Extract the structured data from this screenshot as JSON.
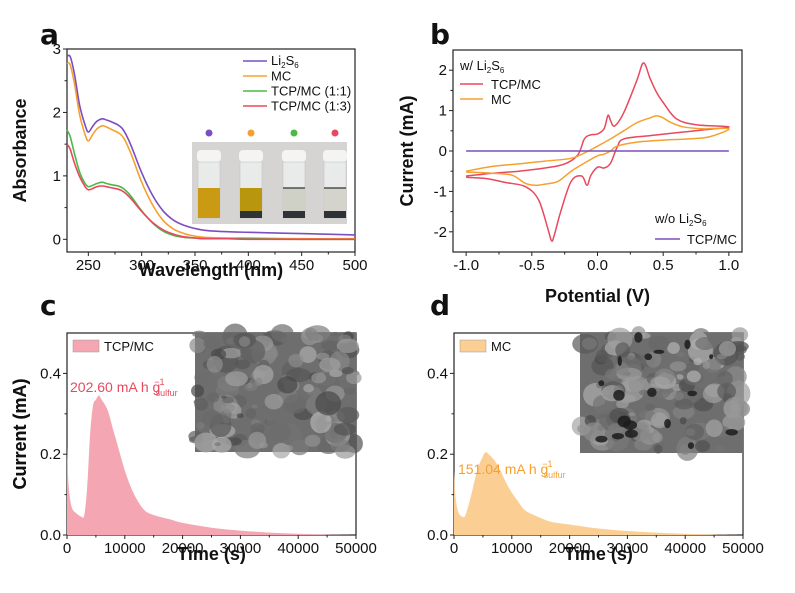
{
  "colors": {
    "purple": "#7b4fbf",
    "orange": "#f5a030",
    "green": "#4cb848",
    "red": "#e8495e",
    "fill_red": "#f4a7b2",
    "fill_orange": "#fbcf94"
  },
  "chart_data": [
    {
      "panel": "a",
      "type": "line",
      "xlabel": "Wavelength (nm)",
      "ylabel": "Absorbance",
      "xlim": [
        230,
        500
      ],
      "ylim": [
        -0.2,
        3
      ],
      "xticks": [
        "250",
        "300",
        "350",
        "400",
        "450",
        "500"
      ],
      "yticks": [
        "0",
        "1",
        "2",
        "3"
      ],
      "legend_position": "top-right",
      "inset": "photo of four vials (Li2S6, MC, TCP/MC 1:1, TCP/MC 1:3) with colored dots",
      "series": [
        {
          "name": "Li2S6",
          "legend_main": "Li",
          "legend_sub1": "2",
          "legend_mid": "S",
          "legend_sub2": "6",
          "color": "purple",
          "x": [
            230,
            233,
            237,
            242,
            247,
            250,
            254,
            258,
            263,
            267,
            272,
            278,
            283,
            290,
            300,
            310,
            320,
            330,
            340,
            350,
            360,
            380,
            400,
            450,
            500
          ],
          "y": [
            2.88,
            2.88,
            2.6,
            2.1,
            1.8,
            1.69,
            1.78,
            1.86,
            1.9,
            1.88,
            1.85,
            1.8,
            1.72,
            1.48,
            1.05,
            0.7,
            0.45,
            0.3,
            0.22,
            0.17,
            0.14,
            0.12,
            0.11,
            0.09,
            0.07
          ]
        },
        {
          "name": "MC",
          "color": "orange",
          "x": [
            230,
            233,
            237,
            242,
            247,
            250,
            254,
            258,
            263,
            267,
            272,
            278,
            283,
            290,
            300,
            310,
            320,
            330,
            340,
            350,
            360,
            380,
            400,
            450,
            500
          ],
          "y": [
            2.78,
            2.75,
            2.45,
            1.95,
            1.65,
            1.55,
            1.65,
            1.74,
            1.79,
            1.77,
            1.73,
            1.68,
            1.6,
            1.35,
            0.9,
            0.55,
            0.3,
            0.16,
            0.09,
            0.05,
            0.03,
            0.02,
            0.02,
            0.01,
            0.01
          ]
        },
        {
          "name": "TCP/MC (1:1)",
          "color": "green",
          "x": [
            230,
            233,
            237,
            242,
            247,
            250,
            254,
            258,
            263,
            267,
            272,
            278,
            283,
            290,
            300,
            310,
            320,
            330,
            340,
            350,
            360,
            380,
            400,
            450,
            500
          ],
          "y": [
            1.72,
            1.62,
            1.35,
            1.05,
            0.88,
            0.83,
            0.85,
            0.88,
            0.9,
            0.88,
            0.86,
            0.84,
            0.8,
            0.68,
            0.45,
            0.26,
            0.13,
            0.06,
            0.03,
            0.02,
            0.01,
            0.01,
            0.01,
            0.0,
            0.0
          ]
        },
        {
          "name": "TCP/MC (1:3)",
          "color": "red",
          "x": [
            230,
            233,
            237,
            242,
            247,
            250,
            254,
            258,
            263,
            267,
            272,
            278,
            283,
            290,
            300,
            310,
            320,
            330,
            340,
            350,
            360,
            380,
            400,
            450,
            500
          ],
          "y": [
            1.5,
            1.42,
            1.2,
            0.98,
            0.83,
            0.78,
            0.8,
            0.83,
            0.84,
            0.83,
            0.81,
            0.79,
            0.75,
            0.64,
            0.44,
            0.27,
            0.15,
            0.08,
            0.04,
            0.02,
            0.01,
            0.01,
            0.0,
            0.0,
            0.0
          ]
        }
      ]
    },
    {
      "panel": "b",
      "type": "line",
      "xlabel": "Potential (V)",
      "ylabel": "Current (mA)",
      "xlim": [
        -1.1,
        1.1
      ],
      "ylim": [
        -2.5,
        2.5
      ],
      "xticks": [
        "-1.0",
        "-0.5",
        "0.0",
        "0.5",
        "1.0"
      ],
      "yticks": [
        "-2",
        "-1",
        "0",
        "1",
        "2"
      ],
      "legend_groups": [
        {
          "title_main": "w/ Li",
          "title_sub1": "2",
          "title_mid": "S",
          "title_sub2": "6",
          "entries": [
            "TCP/MC",
            "MC"
          ],
          "position": "top-left"
        },
        {
          "title_main": "w/o Li",
          "title_sub1": "2",
          "title_mid": "S",
          "title_sub2": "6",
          "entries": [
            "TCP/MC"
          ],
          "position": "bottom-right"
        }
      ],
      "series": [
        {
          "name": "TCP/MC (w/ Li2S6)",
          "color": "red",
          "x": [
            -1.0,
            -0.8,
            -0.6,
            -0.4,
            -0.25,
            -0.15,
            -0.1,
            -0.05,
            0.0,
            0.05,
            0.08,
            0.1,
            0.13,
            0.2,
            0.3,
            0.35,
            0.4,
            0.45,
            0.5,
            0.6,
            0.75,
            1.0,
            0.8,
            0.6,
            0.4,
            0.2,
            0.15,
            0.1,
            0.05,
            0.0,
            -0.05,
            -0.08,
            -0.12,
            -0.2,
            -0.28,
            -0.33,
            -0.35,
            -0.38,
            -0.45,
            -0.55,
            -0.7,
            -0.85,
            -1.0
          ],
          "y": [
            -0.62,
            -0.55,
            -0.5,
            -0.42,
            -0.32,
            -0.1,
            0.3,
            0.4,
            0.42,
            0.55,
            0.88,
            0.75,
            0.62,
            0.95,
            1.75,
            2.18,
            1.8,
            1.45,
            1.2,
            0.8,
            0.65,
            0.6,
            0.52,
            0.45,
            0.38,
            0.3,
            0.1,
            -0.3,
            -0.42,
            -0.4,
            -0.6,
            -0.85,
            -0.62,
            -0.75,
            -1.5,
            -2.1,
            -2.22,
            -1.9,
            -1.2,
            -0.88,
            -0.78,
            -0.68,
            -0.65
          ]
        },
        {
          "name": "MC (w/ Li2S6)",
          "color": "orange",
          "x": [
            -1.0,
            -0.8,
            -0.6,
            -0.4,
            -0.2,
            -0.1,
            0.0,
            0.1,
            0.2,
            0.3,
            0.4,
            0.45,
            0.5,
            0.55,
            0.65,
            0.8,
            1.0,
            0.85,
            0.7,
            0.5,
            0.3,
            0.15,
            0.1,
            0.05,
            0.0,
            -0.1,
            -0.2,
            -0.3,
            -0.4,
            -0.47,
            -0.55,
            -0.65,
            -0.8,
            -1.0
          ],
          "y": [
            -0.5,
            -0.38,
            -0.32,
            -0.25,
            -0.18,
            -0.05,
            0.12,
            0.3,
            0.5,
            0.7,
            0.82,
            0.87,
            0.82,
            0.72,
            0.6,
            0.55,
            0.55,
            0.35,
            0.3,
            0.27,
            0.22,
            0.12,
            0.0,
            -0.08,
            -0.12,
            -0.3,
            -0.5,
            -0.75,
            -0.82,
            -0.85,
            -0.8,
            -0.6,
            -0.55,
            -0.52
          ]
        },
        {
          "name": "TCP/MC (w/o Li2S6)",
          "color": "purple",
          "x": [
            -1.0,
            1.0
          ],
          "y": [
            0.0,
            0.0
          ]
        }
      ]
    },
    {
      "panel": "c",
      "type": "area",
      "xlabel": "Time (s)",
      "ylabel": "Current (mA)",
      "xlim": [
        0,
        50000
      ],
      "ylim": [
        0,
        0.5
      ],
      "xticks": [
        "0",
        "10000",
        "20000",
        "30000",
        "40000",
        "50000"
      ],
      "yticks": [
        "0.0",
        "0.2",
        "0.4"
      ],
      "legend": "TCP/MC",
      "legend_position": "top-left",
      "annotation": {
        "value": "202.60 mA h g",
        "sup": "−1",
        "sub": "sulfur"
      },
      "inset": "SEM image",
      "series": [
        {
          "name": "TCP/MC",
          "color": "fill_red",
          "x": [
            0,
            300,
            800,
            1500,
            2500,
            3000,
            3500,
            4000,
            4500,
            5000,
            5500,
            6000,
            7000,
            8000,
            9000,
            10000,
            11000,
            12000,
            13000,
            14000,
            16000,
            18000,
            20000,
            25000,
            30000,
            35000,
            40000,
            45000,
            50000
          ],
          "y": [
            0.22,
            0.12,
            0.07,
            0.055,
            0.045,
            0.05,
            0.12,
            0.25,
            0.32,
            0.335,
            0.345,
            0.335,
            0.31,
            0.26,
            0.21,
            0.16,
            0.12,
            0.09,
            0.068,
            0.055,
            0.045,
            0.038,
            0.03,
            0.018,
            0.011,
            0.006,
            0.003,
            0.001,
            0.0
          ]
        }
      ]
    },
    {
      "panel": "d",
      "type": "area",
      "xlabel": "Time (s)",
      "ylabel": "Current (mA)",
      "xlim": [
        0,
        50000
      ],
      "ylim": [
        0,
        0.5
      ],
      "xticks": [
        "0",
        "10000",
        "20000",
        "30000",
        "40000",
        "50000"
      ],
      "yticks": [
        "0.0",
        "0.2",
        "0.4"
      ],
      "legend": "MC",
      "legend_position": "top-left",
      "annotation": {
        "value": "151.04 mA h g",
        "sup": "−1",
        "sub": "sulfur"
      },
      "inset": "SEM image",
      "series": [
        {
          "name": "MC",
          "color": "fill_orange",
          "x": [
            0,
            300,
            800,
            1500,
            2000,
            3000,
            4000,
            5000,
            5500,
            6000,
            7000,
            8000,
            9000,
            10000,
            11000,
            12000,
            13000,
            15000,
            17000,
            20000,
            25000,
            30000,
            35000,
            40000,
            45000,
            50000
          ],
          "y": [
            0.16,
            0.09,
            0.055,
            0.045,
            0.05,
            0.1,
            0.16,
            0.195,
            0.205,
            0.2,
            0.185,
            0.16,
            0.13,
            0.105,
            0.085,
            0.065,
            0.055,
            0.042,
            0.032,
            0.026,
            0.016,
            0.01,
            0.006,
            0.003,
            0.001,
            0.0
          ]
        }
      ]
    }
  ]
}
